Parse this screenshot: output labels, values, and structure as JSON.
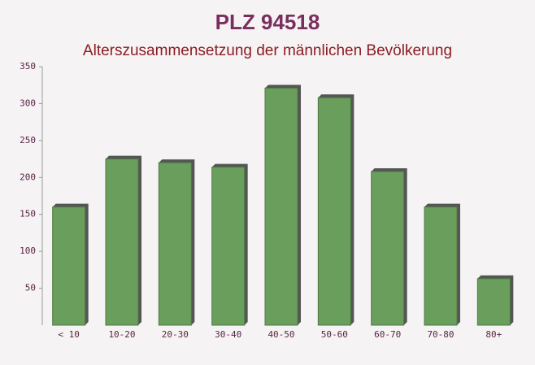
{
  "chart_data": {
    "type": "bar",
    "title": "PLZ 94518",
    "subtitle": "Alterszusammensetzung der männlichen Bevölkerung",
    "categories": [
      "< 10",
      "10-20",
      "20-30",
      "30-40",
      "40-50",
      "50-60",
      "60-70",
      "70-80",
      "80+"
    ],
    "values": [
      160,
      225,
      220,
      214,
      321,
      308,
      208,
      160,
      63
    ],
    "color": "#6a9e5c",
    "ylim": [
      0,
      350
    ],
    "yticks": [
      50,
      100,
      150,
      200,
      250,
      300,
      350
    ],
    "grid": false
  }
}
